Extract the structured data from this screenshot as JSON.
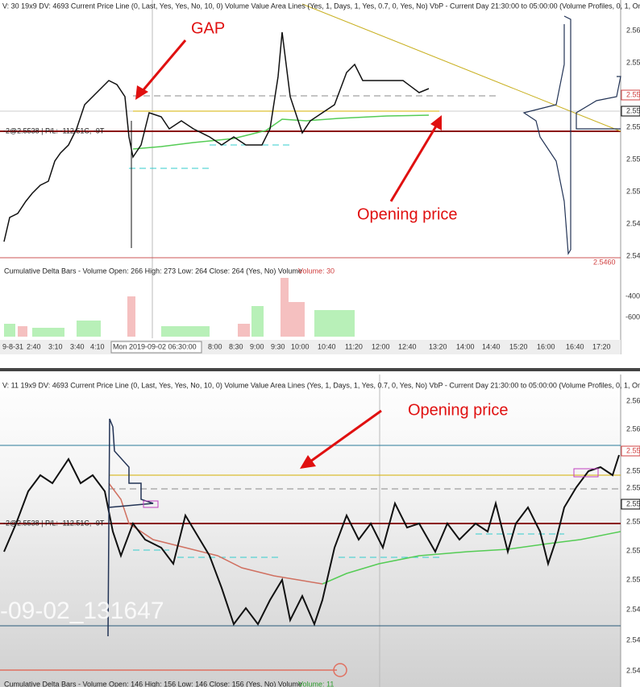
{
  "top_panel": {
    "header": "V: 30 19x9 DV: 4693 Current Price Line (0, Last, Yes, Yes, No, 10, 0) Volume Value Area Lines (Yes, 1, Days, 1, Yes, 0.7, 0, Yes, No) VbP - Current Day 21:30:00 to 05:00:00 (Volume Profiles, 0, 1, One",
    "annotations": [
      "GAP",
      "Opening price"
    ],
    "position_label": "-2@2.5538 | P/L: -112.51C, -9T",
    "price_axis": [
      "2.56",
      "2.55",
      "2.55",
      "2.55",
      "2.55",
      "2.55",
      "2.55",
      "2.54",
      "2.54"
    ],
    "low_marker": "2.5460",
    "indicator_header": "Cumulative Delta Bars - Volume  Open: 266  High: 273  Low: 264  Close: 264  (Yes, No)  Volume",
    "indicator_value": "Volume: 30",
    "indicator_axis": [
      "-400",
      "-600"
    ],
    "time_axis": [
      "9-8-31",
      "2:40",
      "3:10",
      "3:40",
      "4:10",
      "Mon 2019-09-02  06:30:00",
      "8:00",
      "8:30",
      "9:00",
      "9:30",
      "10:00",
      "10:40",
      "11:20",
      "12:00",
      "12:40",
      "13:20",
      "14:00",
      "14:40",
      "15:20",
      "16:00",
      "16:40",
      "17:20"
    ]
  },
  "bottom_panel": {
    "header": "V: 11 19x9 DV: 4693 Current Price Line (0, Last, Yes, Yes, No, 10, 0) Volume Value Area Lines (Yes, 1, Days, 1, Yes, 0.7, 0, Yes, No) VbP - Current Day 21:30:00 to 05:00:00 (Volume Profiles, 0, 1, One",
    "annotation": "Opening price",
    "position_label": "-2@2.5538 | P/L: -112.51C, -9T",
    "price_axis": [
      "2.56",
      "2.56",
      "2.55",
      "2.55",
      "2.55",
      "2.55",
      "2.55",
      "2.55",
      "2.55",
      "2.54",
      "2.54",
      "2.54"
    ],
    "watermark": "-09-02_131647",
    "indicator_header": "Cumulative Delta Bars - Volume  Open: 146  High: 156  Low: 146  Close: 156  (Yes, No)  Volume",
    "indicator_value": "Volume: 11"
  }
}
